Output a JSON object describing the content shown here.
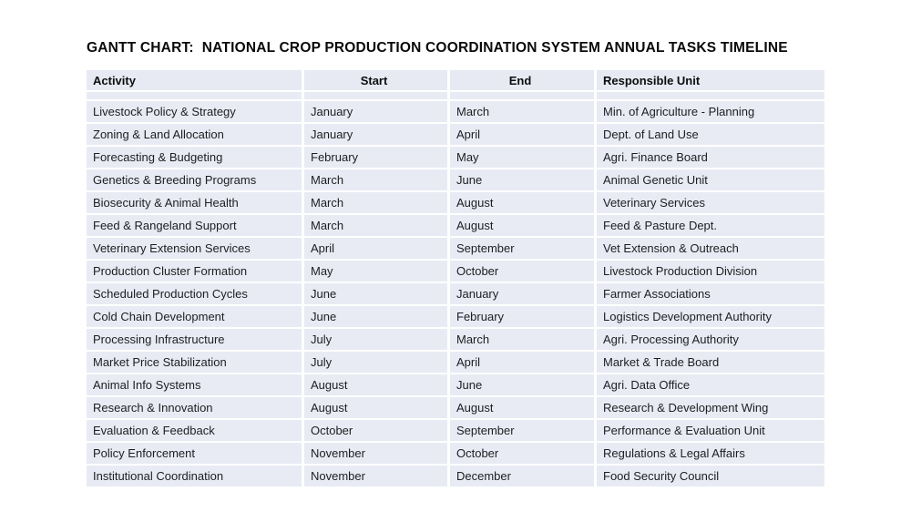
{
  "page_title": "GANTT CHART:  NATIONAL CROP PRODUCTION COORDINATION SYSTEM ANNUAL TASKS TIMELINE",
  "colors": {
    "row_bg": "#e9ebf4",
    "header_bg": "#e7eaf3",
    "text": "#1d1e22",
    "title_text": "#0a0a0a",
    "page_bg": "#ffffff",
    "gridline": "#ffffff"
  },
  "table": {
    "columns": [
      {
        "label": "Activity",
        "align": "left"
      },
      {
        "label": "Start",
        "align": "center"
      },
      {
        "label": "End",
        "align": "center"
      },
      {
        "label": "Responsible Unit",
        "align": "left"
      }
    ],
    "rows": [
      {
        "cells": [
          "Livestock Policy & Strategy",
          "January",
          "March",
          "Min. of Agriculture - Planning"
        ]
      },
      {
        "cells": [
          "Zoning & Land Allocation",
          "January",
          "April",
          "Dept. of Land Use"
        ]
      },
      {
        "cells": [
          "Forecasting & Budgeting",
          "February",
          "May",
          "Agri. Finance Board"
        ]
      },
      {
        "cells": [
          "Genetics & Breeding Programs",
          "March",
          "June",
          "Animal Genetic Unit"
        ]
      },
      {
        "cells": [
          "Biosecurity & Animal Health",
          "March",
          "August",
          "Veterinary Services"
        ]
      },
      {
        "cells": [
          "Feed & Rangeland Support",
          "March",
          "August",
          "Feed & Pasture Dept."
        ]
      },
      {
        "cells": [
          "Veterinary Extension Services",
          "April",
          "September",
          "Vet Extension & Outreach"
        ]
      },
      {
        "cells": [
          "Production Cluster Formation",
          "May",
          "October",
          "Livestock Production Division"
        ]
      },
      {
        "cells": [
          "Scheduled Production Cycles",
          "June",
          "January",
          "Farmer Associations"
        ]
      },
      {
        "cells": [
          "Cold Chain Development",
          "June",
          "February",
          "Logistics Development Authority"
        ]
      },
      {
        "cells": [
          "Processing Infrastructure",
          "July",
          "March",
          "Agri. Processing Authority"
        ]
      },
      {
        "cells": [
          "Market Price Stabilization",
          "July",
          "April",
          "Market & Trade Board"
        ]
      },
      {
        "cells": [
          "Animal Info Systems",
          "August",
          "June",
          "Agri. Data Office"
        ]
      },
      {
        "cells": [
          "Research & Innovation",
          "August",
          "August",
          "Research & Development Wing"
        ]
      },
      {
        "cells": [
          "Evaluation & Feedback",
          "October",
          "September",
          "Performance & Evaluation Unit"
        ]
      },
      {
        "cells": [
          "Policy Enforcement",
          "November",
          "October",
          "Regulations & Legal Affairs"
        ]
      },
      {
        "cells": [
          "Institutional Coordination",
          "November",
          "December",
          "Food Security Council"
        ]
      }
    ]
  }
}
